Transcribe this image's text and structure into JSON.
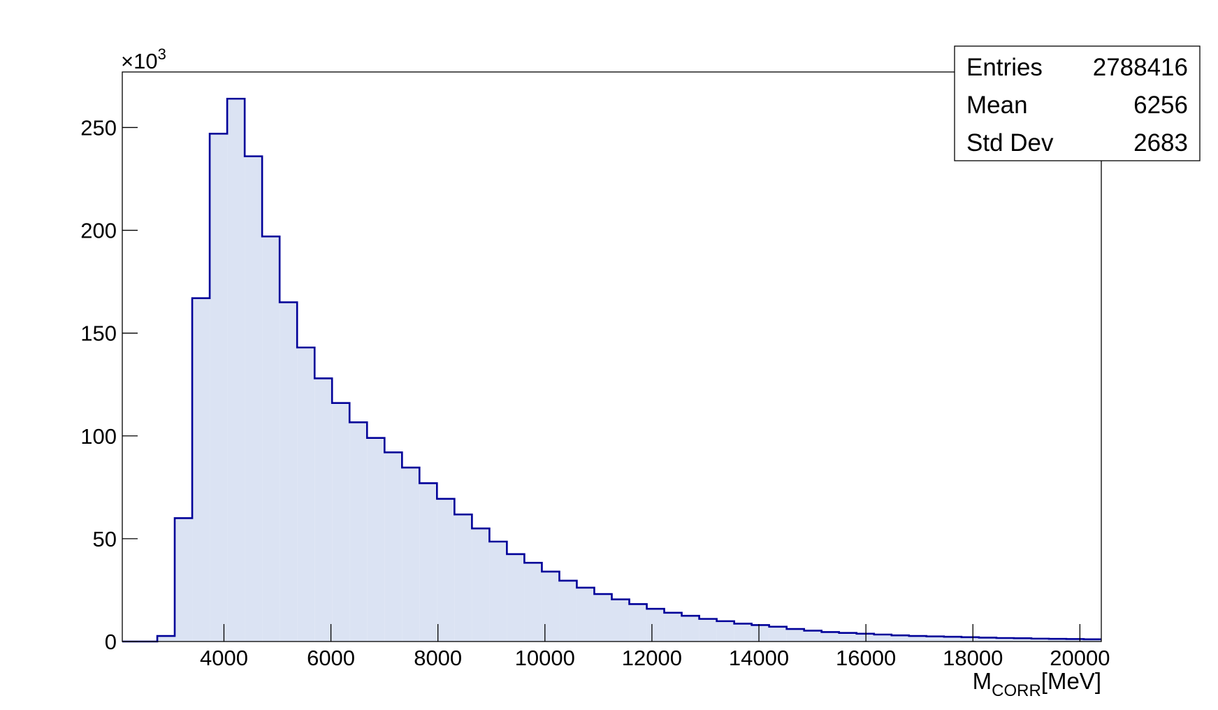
{
  "chart_data": {
    "type": "histogram",
    "xlabel": "M",
    "xlabel_sub": "CORR",
    "xlabel_unit": "[MeV]",
    "y_scale_label": "×10",
    "y_scale_exponent": "3",
    "bins": [
      2100,
      2427,
      2754,
      3080,
      3407,
      3734,
      4061,
      4388,
      4714,
      5041,
      5368,
      5695,
      6021,
      6348,
      6675,
      7002,
      7329,
      7655,
      7982,
      8309,
      8636,
      8963,
      9289,
      9616,
      9943,
      10270,
      10596,
      10923,
      11250,
      11577,
      11904,
      12230,
      12557,
      12884,
      13211,
      13538,
      13864,
      14191,
      14518,
      14845,
      15171,
      15498,
      15825,
      16152,
      16479,
      16805,
      17132,
      17459,
      17786,
      18113,
      18439,
      18766,
      19093,
      19420,
      19746,
      20073,
      20400
    ],
    "values": [
      0,
      0,
      2.7,
      60,
      167,
      247,
      264,
      236,
      197,
      165,
      143,
      128,
      116,
      106.6,
      99,
      92,
      84.6,
      77,
      69.4,
      61.8,
      55,
      48.6,
      42.5,
      38.3,
      34,
      29.6,
      26.2,
      23.1,
      20.5,
      18.2,
      15.9,
      14,
      12.5,
      11,
      9.9,
      8.7,
      8,
      7.2,
      6.1,
      5.3,
      4.6,
      4.2,
      3.8,
      3.4,
      3.0,
      2.7,
      2.5,
      2.3,
      2.1,
      1.9,
      1.7,
      1.6,
      1.4,
      1.3,
      1.2,
      1.1
    ],
    "color": "#000099",
    "fill_color": "#dbe3f3",
    "xlim": [
      2100,
      20400
    ],
    "ylim": [
      0,
      277
    ],
    "xticks": [
      4000,
      6000,
      8000,
      10000,
      12000,
      14000,
      16000,
      18000,
      20000
    ],
    "yticks": [
      0,
      50,
      100,
      150,
      200,
      250
    ],
    "stats": [
      {
        "label": "Entries",
        "value": 2788416
      },
      {
        "label": "Mean",
        "value": 6256
      },
      {
        "label": "Std Dev",
        "value": 2683
      }
    ]
  }
}
